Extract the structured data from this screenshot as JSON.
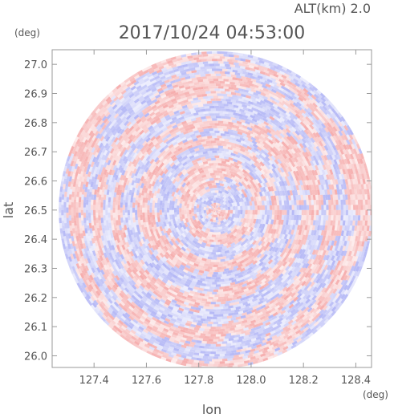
{
  "chart_data": {
    "type": "heatmap",
    "title": "2017/10/24 04:53:00",
    "subtitle": "ALT(km) 2.0",
    "xlabel": "lon",
    "ylabel": "lat",
    "x_unit": "(deg)",
    "y_unit": "(deg)",
    "xlim": [
      127.24,
      128.46
    ],
    "ylim": [
      25.96,
      27.05
    ],
    "x_ticks": [
      127.4,
      127.6,
      127.8,
      128.0,
      128.2,
      128.4
    ],
    "x_tick_labels": [
      "127.4",
      "127.6",
      "127.8",
      "128.0",
      "128.2",
      "128.4"
    ],
    "y_ticks": [
      26.0,
      26.1,
      26.2,
      26.3,
      26.4,
      26.5,
      26.6,
      26.7,
      26.8,
      26.9,
      27.0
    ],
    "y_tick_labels": [
      "26.0",
      "26.1",
      "26.2",
      "26.3",
      "26.4",
      "26.5",
      "26.6",
      "26.7",
      "26.8",
      "26.9",
      "27.0"
    ],
    "radar_center": {
      "lon": 127.865,
      "lat": 26.5
    },
    "radar_range_deg": {
      "lon": 0.6,
      "lat": 0.545
    },
    "grid": false,
    "colormap": {
      "positive": "#f4a0a0",
      "negative": "#a8acf4",
      "zero": "#ffffff"
    }
  }
}
